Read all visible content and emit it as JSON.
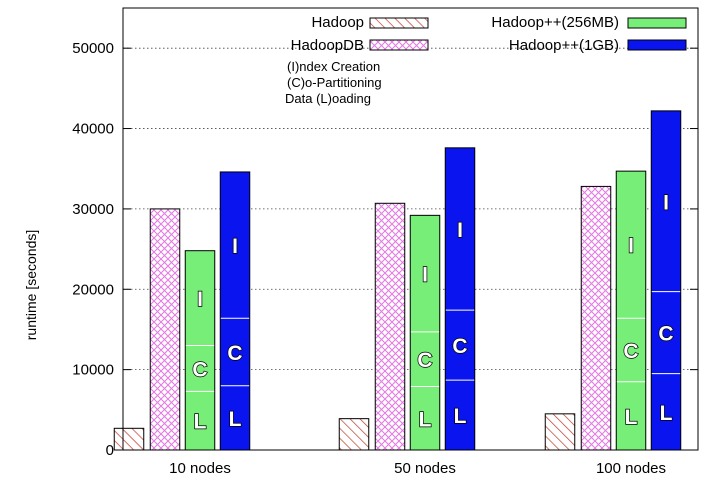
{
  "chart_data": {
    "type": "bar",
    "ylabel": "runtime [seconds]",
    "xlabel": "",
    "ylim": [
      0,
      55000
    ],
    "yticks": [
      0,
      10000,
      20000,
      30000,
      40000,
      50000
    ],
    "categories": [
      "10 nodes",
      "50 nodes",
      "100 nodes"
    ],
    "grid": true,
    "legend_position": "top",
    "series": [
      {
        "name": "Hadoop",
        "color": "#c0392b",
        "pattern": "diagonal-hatch",
        "values": [
          2700,
          3900,
          4500
        ]
      },
      {
        "name": "HadoopDB",
        "color": "#e37ce3",
        "pattern": "crosshatch",
        "values": [
          30000,
          30700,
          32800
        ]
      },
      {
        "name": "Hadoop++(256MB)",
        "color": "#77ee77",
        "pattern": "solid",
        "values": [
          24800,
          29200,
          34700
        ],
        "stacks": [
          {
            "label": "L",
            "values": [
              7300,
              7900,
              8500
            ]
          },
          {
            "label": "C",
            "values": [
              5700,
              6800,
              7900
            ]
          },
          {
            "label": "I",
            "values": [
              11800,
              14500,
              18300
            ]
          }
        ]
      },
      {
        "name": "Hadoop++(1GB)",
        "color": "#0a14ee",
        "pattern": "solid",
        "values": [
          34600,
          37600,
          42200
        ],
        "stacks": [
          {
            "label": "L",
            "values": [
              8000,
              8700,
              9500
            ]
          },
          {
            "label": "C",
            "values": [
              8400,
              8700,
              10200
            ]
          },
          {
            "label": "I",
            "values": [
              18200,
              20200,
              22500
            ]
          }
        ]
      }
    ],
    "annotations": [
      "(I)ndex Creation",
      "(C)o-Partitioning",
      "Data (L)oading"
    ]
  }
}
